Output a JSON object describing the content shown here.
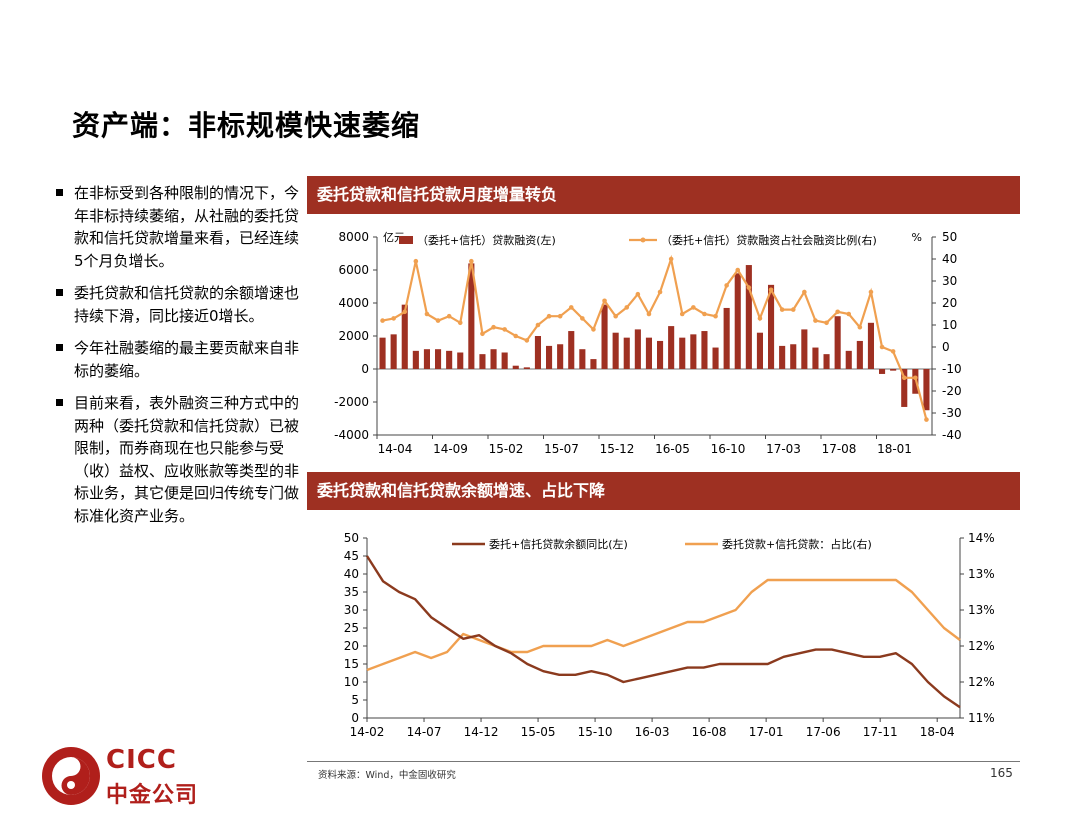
{
  "page": {
    "title": "资产端：非标规模快速萎缩",
    "bullets": [
      "在非标受到各种限制的情况下，今年非标持续萎缩，从社融的委托贷款和信托贷款增量来看，已经连续5个月负增长。",
      "委托贷款和信托贷款的余额增速也持续下滑，同比接近0增长。",
      "今年社融萎缩的最主要贡献来自非标的萎缩。",
      "目前来看，表外融资三种方式中的两种（委托贷款和信托贷款）已被限制，而券商现在也只能参与受（收）益权、应收账款等类型的非标业务，其它便是回归传统专门做标准化资产业务。"
    ],
    "source": "资料来源：Wind，中金固收研究",
    "page_number": "165",
    "logo": {
      "en": "CICC",
      "cn": "中金公司"
    }
  },
  "colors": {
    "bar": "#9e3022",
    "line": "#f0a050",
    "line_dark": "#8b3a1e",
    "banner": "#9e3022",
    "logo": "#b01f1b"
  },
  "chart_data": [
    {
      "type": "bar",
      "title": "委托贷款和信托贷款月度增量转负",
      "left_unit": "亿元",
      "right_unit": "%",
      "x_ticks": [
        "14-04",
        "14-09",
        "15-02",
        "15-07",
        "15-12",
        "16-05",
        "16-10",
        "17-03",
        "17-08",
        "18-01"
      ],
      "left_ylim": [
        -4000,
        8000
      ],
      "left_yticks": [
        -4000,
        -2000,
        0,
        2000,
        4000,
        6000,
        8000
      ],
      "right_ylim": [
        -40,
        50
      ],
      "right_yticks": [
        -40,
        -30,
        -20,
        -10,
        0,
        10,
        20,
        30,
        40,
        50
      ],
      "series": [
        {
          "name": "（委托+信托）贷款融资(左)",
          "axis": "left",
          "kind": "bar",
          "values": [
            1900,
            2100,
            3900,
            1100,
            1200,
            1200,
            1100,
            1000,
            6400,
            900,
            1200,
            1000,
            200,
            100,
            2000,
            1400,
            1500,
            2300,
            1200,
            600,
            3900,
            2200,
            1900,
            2400,
            1900,
            1700,
            2600,
            1900,
            2100,
            2300,
            1300,
            3700,
            5800,
            6300,
            2200,
            5100,
            1400,
            1500,
            2400,
            1300,
            900,
            3200,
            1100,
            1700,
            2800,
            -300,
            -100,
            -2300,
            -1500,
            -2500
          ]
        },
        {
          "name": "（委托+信托）贷款融资占社会融资比例(右)",
          "axis": "right",
          "kind": "line",
          "values": [
            12,
            13,
            16,
            39,
            15,
            12,
            14,
            11,
            39,
            6,
            9,
            8,
            5,
            3,
            10,
            14,
            14,
            18,
            13,
            8,
            21,
            14,
            18,
            24,
            15,
            25,
            40,
            15,
            18,
            15,
            14,
            28,
            35,
            27,
            13,
            26,
            17,
            17,
            25,
            12,
            11,
            16,
            15,
            9,
            25,
            0,
            -2,
            -14,
            -14,
            -33
          ]
        }
      ]
    },
    {
      "type": "line",
      "title": "委托贷款和信托贷款余额增速、占比下降",
      "x_ticks": [
        "14-02",
        "14-07",
        "14-12",
        "15-05",
        "15-10",
        "16-03",
        "16-08",
        "17-01",
        "17-06",
        "17-11",
        "18-04"
      ],
      "left_ylim": [
        0,
        50
      ],
      "left_yticks": [
        0,
        5,
        10,
        15,
        20,
        25,
        30,
        35,
        40,
        45,
        50
      ],
      "right_ylim": [
        11,
        14
      ],
      "right_ytick_labels": [
        "11%",
        "12%",
        "12%",
        "13%",
        "13%",
        "14%"
      ],
      "series": [
        {
          "name": "委托+信托贷款余额同比(左)",
          "axis": "left",
          "values": [
            45,
            38,
            35,
            33,
            28,
            25,
            22,
            23,
            20,
            18,
            15,
            13,
            12,
            12,
            13,
            12,
            10,
            11,
            12,
            13,
            14,
            14,
            15,
            15,
            15,
            15,
            17,
            18,
            19,
            19,
            18,
            17,
            17,
            18,
            15,
            10,
            6,
            3
          ]
        },
        {
          "name": "委托贷款+信托贷款：占比(右)",
          "axis": "right",
          "values": [
            11.8,
            11.9,
            12.0,
            12.1,
            12.0,
            12.1,
            12.4,
            12.3,
            12.2,
            12.1,
            12.1,
            12.2,
            12.2,
            12.2,
            12.2,
            12.3,
            12.2,
            12.3,
            12.4,
            12.5,
            12.6,
            12.6,
            12.7,
            12.8,
            13.1,
            13.3,
            13.3,
            13.3,
            13.3,
            13.3,
            13.3,
            13.3,
            13.3,
            13.3,
            13.1,
            12.8,
            12.5,
            12.3
          ]
        }
      ]
    }
  ]
}
